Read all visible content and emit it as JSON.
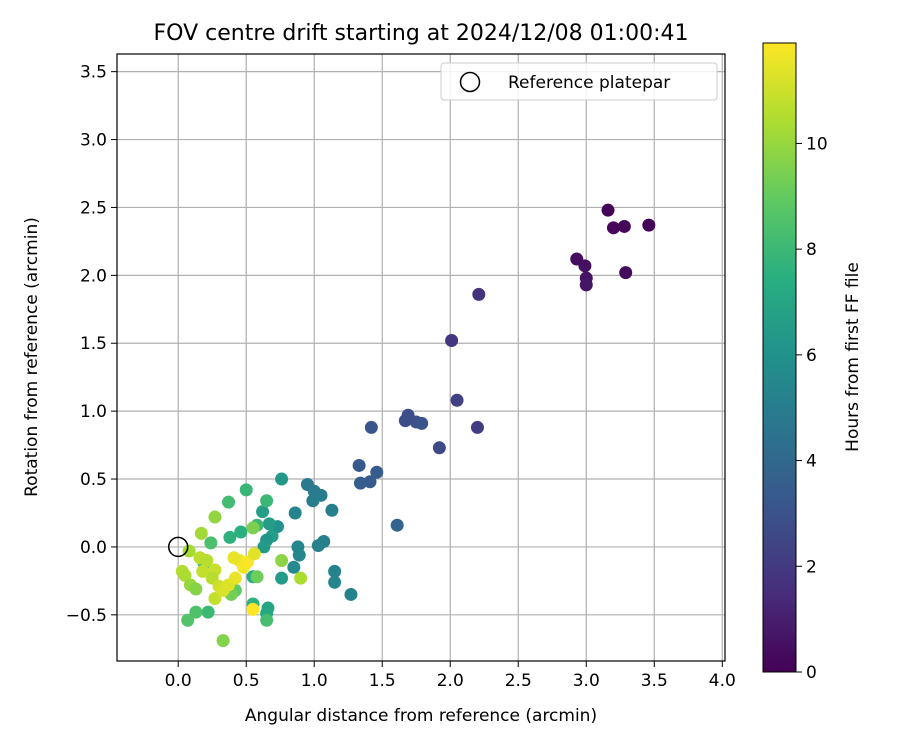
{
  "chart_data": {
    "type": "scatter",
    "title": "FOV centre drift starting at 2024/12/08 01:00:41",
    "xlabel": "Angular distance from reference (arcmin)",
    "ylabel": "Rotation from reference (arcmin)",
    "xlim": [
      -0.45,
      4.02
    ],
    "ylim": [
      -0.84,
      3.63
    ],
    "x_ticks": [
      0.0,
      0.5,
      1.0,
      1.5,
      2.0,
      2.5,
      3.0,
      3.5,
      4.0
    ],
    "y_ticks": [
      -0.5,
      0.0,
      0.5,
      1.0,
      1.5,
      2.0,
      2.5,
      3.0,
      3.5
    ],
    "x_tick_labels": [
      "0.0",
      "0.5",
      "1.0",
      "1.5",
      "2.0",
      "2.5",
      "3.0",
      "3.5",
      "4.0"
    ],
    "y_tick_labels": [
      "−0.5",
      "0.0",
      "0.5",
      "1.0",
      "1.5",
      "2.0",
      "2.5",
      "3.0",
      "3.5"
    ],
    "grid": true,
    "legend": {
      "placement": "top-right",
      "entries": [
        "Reference platepar"
      ]
    },
    "reference_point": {
      "x": 0.0,
      "y": 0.0
    },
    "colorbar": {
      "label": "Hours from first FF file",
      "colormap": "viridis",
      "range": [
        0,
        11.9
      ],
      "ticks": [
        0,
        2,
        4,
        6,
        8,
        10
      ],
      "tick_labels": [
        "0",
        "2",
        "4",
        "6",
        "8",
        "10"
      ]
    },
    "points": [
      {
        "x": 3.16,
        "y": 2.48,
        "h": 0.1
      },
      {
        "x": 3.46,
        "y": 2.37,
        "h": 0.1
      },
      {
        "x": 3.2,
        "y": 2.35,
        "h": 0.2
      },
      {
        "x": 3.28,
        "y": 2.36,
        "h": 0.2
      },
      {
        "x": 2.93,
        "y": 2.12,
        "h": 0.4
      },
      {
        "x": 2.99,
        "y": 2.07,
        "h": 0.5
      },
      {
        "x": 3.29,
        "y": 2.02,
        "h": 0.3
      },
      {
        "x": 3.0,
        "y": 1.98,
        "h": 0.6
      },
      {
        "x": 3.0,
        "y": 1.93,
        "h": 0.7
      },
      {
        "x": 2.21,
        "y": 1.86,
        "h": 1.7
      },
      {
        "x": 2.01,
        "y": 1.52,
        "h": 1.9
      },
      {
        "x": 2.05,
        "y": 1.08,
        "h": 2.3
      },
      {
        "x": 2.2,
        "y": 0.88,
        "h": 2.1
      },
      {
        "x": 1.69,
        "y": 0.97,
        "h": 2.8
      },
      {
        "x": 1.67,
        "y": 0.93,
        "h": 2.8
      },
      {
        "x": 1.75,
        "y": 0.92,
        "h": 2.9
      },
      {
        "x": 1.79,
        "y": 0.91,
        "h": 3.0
      },
      {
        "x": 1.42,
        "y": 0.88,
        "h": 3.1
      },
      {
        "x": 1.92,
        "y": 0.73,
        "h": 2.6
      },
      {
        "x": 1.33,
        "y": 0.6,
        "h": 3.3
      },
      {
        "x": 1.46,
        "y": 0.55,
        "h": 3.4
      },
      {
        "x": 1.34,
        "y": 0.47,
        "h": 3.5
      },
      {
        "x": 1.41,
        "y": 0.48,
        "h": 3.4
      },
      {
        "x": 1.61,
        "y": 0.16,
        "h": 3.8
      },
      {
        "x": 0.95,
        "y": 0.46,
        "h": 4.8
      },
      {
        "x": 1.0,
        "y": 0.41,
        "h": 4.9
      },
      {
        "x": 1.05,
        "y": 0.38,
        "h": 4.9
      },
      {
        "x": 0.99,
        "y": 0.34,
        "h": 5.0
      },
      {
        "x": 1.13,
        "y": 0.27,
        "h": 5.1
      },
      {
        "x": 0.86,
        "y": 0.25,
        "h": 5.3
      },
      {
        "x": 1.07,
        "y": 0.04,
        "h": 5.1
      },
      {
        "x": 1.03,
        "y": 0.01,
        "h": 5.2
      },
      {
        "x": 0.88,
        "y": 0.0,
        "h": 5.4
      },
      {
        "x": 0.89,
        "y": -0.06,
        "h": 5.5
      },
      {
        "x": 0.85,
        "y": -0.15,
        "h": 5.6
      },
      {
        "x": 1.15,
        "y": -0.18,
        "h": 5.3
      },
      {
        "x": 1.15,
        "y": -0.26,
        "h": 5.4
      },
      {
        "x": 1.27,
        "y": -0.35,
        "h": 5.2
      },
      {
        "x": 0.76,
        "y": 0.5,
        "h": 6.3
      },
      {
        "x": 0.73,
        "y": 0.15,
        "h": 6.0
      },
      {
        "x": 0.67,
        "y": 0.17,
        "h": 6.5
      },
      {
        "x": 0.62,
        "y": 0.26,
        "h": 6.6
      },
      {
        "x": 0.69,
        "y": 0.08,
        "h": 6.6
      },
      {
        "x": 0.65,
        "y": 0.05,
        "h": 6.2
      },
      {
        "x": 0.63,
        "y": 0.0,
        "h": 6.4
      },
      {
        "x": 0.76,
        "y": -0.23,
        "h": 6.5
      },
      {
        "x": 0.66,
        "y": -0.45,
        "h": 7.0
      },
      {
        "x": 0.65,
        "y": -0.49,
        "h": 7.1
      },
      {
        "x": 0.65,
        "y": -0.54,
        "h": 8.3
      },
      {
        "x": 0.65,
        "y": 0.34,
        "h": 8.0
      },
      {
        "x": 0.5,
        "y": 0.42,
        "h": 7.9
      },
      {
        "x": 0.37,
        "y": 0.33,
        "h": 8.2
      },
      {
        "x": 0.58,
        "y": 0.16,
        "h": 8.0
      },
      {
        "x": 0.46,
        "y": 0.11,
        "h": 7.5
      },
      {
        "x": 0.38,
        "y": 0.07,
        "h": 7.6
      },
      {
        "x": 0.24,
        "y": 0.03,
        "h": 8.4
      },
      {
        "x": 0.55,
        "y": -0.22,
        "h": 7.3
      },
      {
        "x": 0.55,
        "y": -0.42,
        "h": 7.6
      },
      {
        "x": 0.19,
        "y": -0.12,
        "h": 8.2
      },
      {
        "x": 0.22,
        "y": -0.48,
        "h": 8.0
      },
      {
        "x": 0.13,
        "y": -0.48,
        "h": 8.5
      },
      {
        "x": 0.07,
        "y": -0.54,
        "h": 8.6
      },
      {
        "x": 0.27,
        "y": 0.22,
        "h": 9.9
      },
      {
        "x": 0.17,
        "y": 0.1,
        "h": 10.2
      },
      {
        "x": 0.55,
        "y": 0.14,
        "h": 9.5
      },
      {
        "x": 0.58,
        "y": -0.22,
        "h": 9.2
      },
      {
        "x": 0.76,
        "y": -0.1,
        "h": 9.8
      },
      {
        "x": 0.9,
        "y": -0.23,
        "h": 10.4
      },
      {
        "x": 0.33,
        "y": -0.69,
        "h": 9.6
      },
      {
        "x": 0.42,
        "y": -0.32,
        "h": 8.9
      },
      {
        "x": 0.39,
        "y": -0.35,
        "h": 9.3
      },
      {
        "x": 0.08,
        "y": -0.03,
        "h": 10.3
      },
      {
        "x": 0.03,
        "y": -0.18,
        "h": 10.5
      },
      {
        "x": 0.05,
        "y": -0.21,
        "h": 10.4
      },
      {
        "x": 0.09,
        "y": -0.28,
        "h": 10.0
      },
      {
        "x": 0.13,
        "y": -0.31,
        "h": 9.7
      },
      {
        "x": 0.16,
        "y": -0.08,
        "h": 10.7
      },
      {
        "x": 0.21,
        "y": -0.1,
        "h": 10.6
      },
      {
        "x": 0.18,
        "y": -0.18,
        "h": 10.8
      },
      {
        "x": 0.27,
        "y": -0.17,
        "h": 10.9
      },
      {
        "x": 0.25,
        "y": -0.23,
        "h": 10.6
      },
      {
        "x": 0.3,
        "y": -0.29,
        "h": 11.0
      },
      {
        "x": 0.27,
        "y": -0.38,
        "h": 10.8
      },
      {
        "x": 0.33,
        "y": -0.32,
        "h": 11.2
      },
      {
        "x": 0.37,
        "y": -0.28,
        "h": 11.3
      },
      {
        "x": 0.42,
        "y": -0.23,
        "h": 11.5
      },
      {
        "x": 0.45,
        "y": -0.1,
        "h": 11.6
      },
      {
        "x": 0.48,
        "y": -0.15,
        "h": 11.7
      },
      {
        "x": 0.51,
        "y": -0.11,
        "h": 11.8
      },
      {
        "x": 0.56,
        "y": -0.05,
        "h": 11.4
      },
      {
        "x": 0.41,
        "y": -0.08,
        "h": 11.5
      },
      {
        "x": 0.55,
        "y": -0.46,
        "h": 11.9
      }
    ]
  }
}
